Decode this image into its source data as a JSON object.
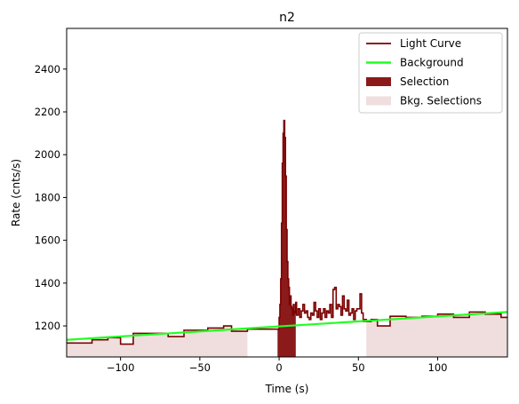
{
  "chart_data": {
    "type": "line",
    "title": "n2",
    "xlabel": "Time (s)",
    "ylabel": "Rate (cnts/s)",
    "xlim": [
      -134,
      144
    ],
    "ylim": [
      1055,
      2590
    ],
    "xticks": [
      -100,
      -50,
      0,
      50,
      100
    ],
    "yticks": [
      1200,
      1400,
      1600,
      1800,
      2000,
      2200,
      2400
    ],
    "grid": false,
    "legend_position": "top-right",
    "colors": {
      "light_curve": "#7b0000",
      "background": "#22ff22",
      "selection": "#8b1a1a",
      "bkg_selection": "#f0dede"
    },
    "legend": [
      {
        "label": "Light Curve",
        "kind": "line",
        "color": "#7b0000"
      },
      {
        "label": "Background",
        "kind": "line",
        "color": "#22ff22"
      },
      {
        "label": "Selection",
        "kind": "patch",
        "color": "#8b1a1a"
      },
      {
        "label": "Bkg. Selections",
        "kind": "patch",
        "color": "#f0dede"
      }
    ],
    "light_curve": {
      "edges": [
        -134,
        -118,
        -108,
        -100,
        -92,
        -75,
        -70,
        -60,
        -50,
        -45,
        -35,
        -30,
        -20,
        0.0,
        0.5,
        1.0,
        1.5,
        2.0,
        2.5,
        3.0,
        3.5,
        4.0,
        4.5,
        5.0,
        5.5,
        6.0,
        6.5,
        7.0,
        7.5,
        8.0,
        8.5,
        9.0,
        9.5,
        10.0,
        10.5,
        11.0,
        12,
        13,
        14,
        15,
        16,
        17,
        18,
        19,
        20,
        21,
        22,
        23,
        24,
        25,
        26,
        27,
        28,
        29,
        30,
        31,
        32,
        33,
        34,
        35,
        36,
        37,
        38,
        39,
        40,
        41,
        42,
        43,
        44,
        45,
        46,
        47,
        48,
        49,
        50,
        51,
        52,
        53,
        54,
        55,
        58,
        62,
        70,
        80,
        90,
        100,
        110,
        120,
        130,
        140,
        144
      ],
      "values": [
        1120,
        1135,
        1145,
        1115,
        1165,
        1165,
        1150,
        1180,
        1180,
        1190,
        1200,
        1175,
        1185,
        1240,
        1300,
        1420,
        1680,
        1960,
        2100,
        2160,
        2080,
        1900,
        1650,
        1500,
        1420,
        1380,
        1300,
        1340,
        1290,
        1280,
        1250,
        1300,
        1270,
        1260,
        1310,
        1250,
        1280,
        1240,
        1270,
        1300,
        1260,
        1270,
        1240,
        1230,
        1260,
        1250,
        1310,
        1270,
        1240,
        1280,
        1230,
        1260,
        1280,
        1240,
        1270,
        1260,
        1300,
        1240,
        1370,
        1380,
        1280,
        1300,
        1290,
        1250,
        1340,
        1280,
        1270,
        1320,
        1250,
        1260,
        1280,
        1230,
        1270,
        1280,
        1280,
        1350,
        1260,
        1220,
        1230,
        1220,
        1230,
        1200,
        1245,
        1240,
        1245,
        1255,
        1240,
        1265,
        1255,
        1240
      ]
    },
    "background": {
      "x": [
        -134,
        144
      ],
      "y": [
        1135,
        1265
      ]
    },
    "selection": [
      -1.0,
      10.5
    ],
    "bkg_selections": [
      [
        -134,
        -20
      ],
      [
        55,
        144
      ]
    ]
  }
}
